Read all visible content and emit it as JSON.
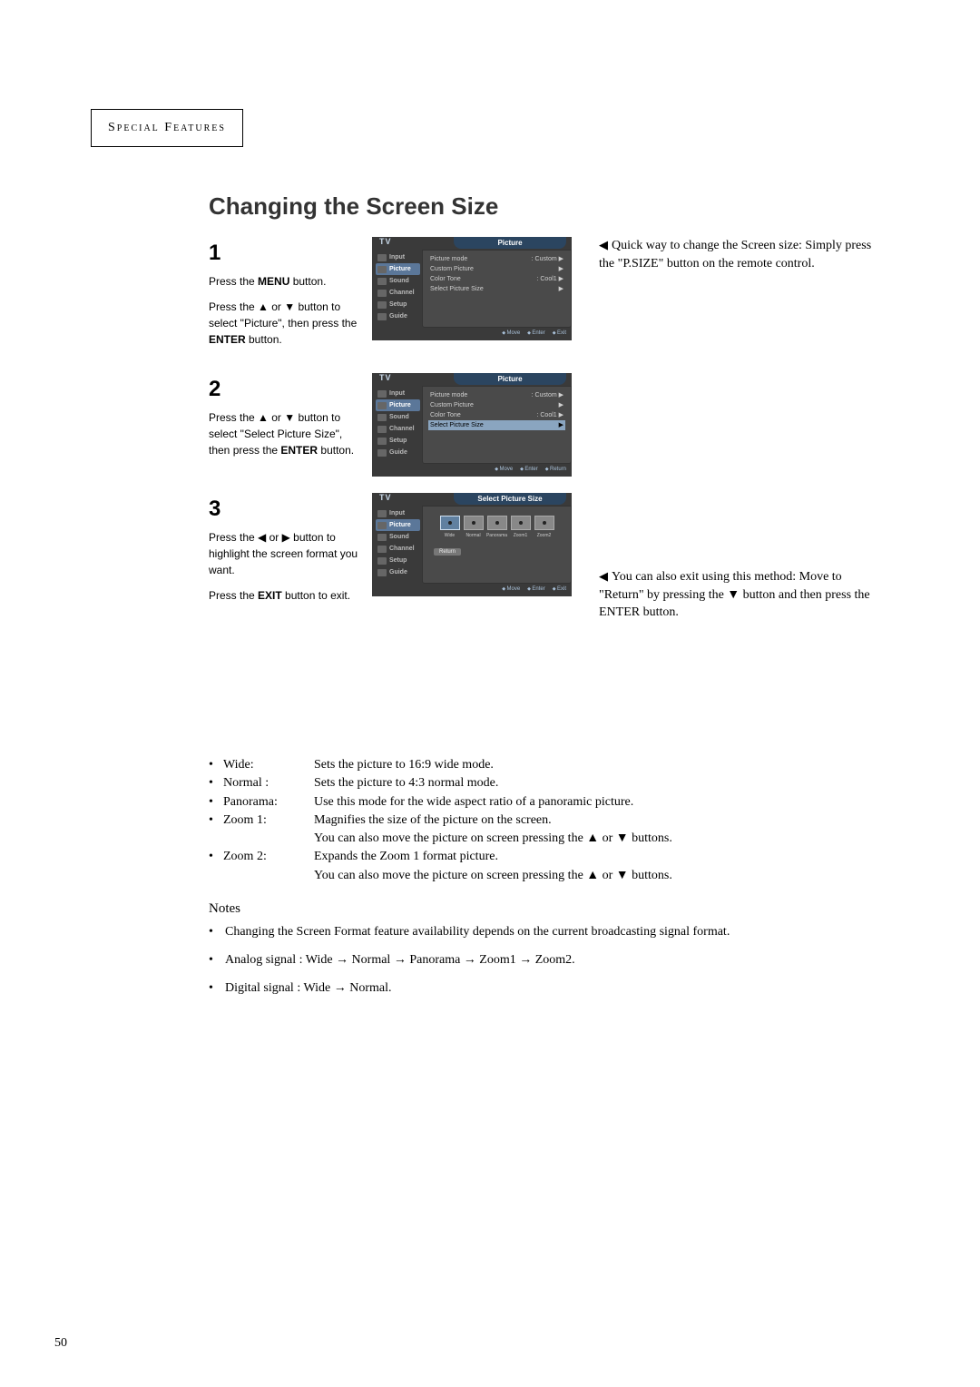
{
  "header": {
    "section": "Special Features"
  },
  "title": "Changing the Screen Size",
  "steps": [
    {
      "num": "1",
      "paras": [
        {
          "pre": "Press the ",
          "bold": "MENU",
          "post": " button."
        },
        {
          "pre": "Press the ▲ or ▼ button to select \"Picture\", then press the ",
          "bold": "ENTER",
          "post": " button."
        }
      ],
      "osd": {
        "tv": "TV",
        "title": "Picture",
        "left": [
          "Input",
          "Picture",
          "Sound",
          "Channel",
          "Setup",
          "Guide"
        ],
        "sel": 1,
        "lines": [
          {
            "l": "Picture mode",
            "r": ": Custom ▶"
          },
          {
            "l": "Custom Picture",
            "r": "▶"
          },
          {
            "l": "Color Tone",
            "r": ": Cool1 ▶"
          },
          {
            "l": "Select Picture Size",
            "r": "▶"
          }
        ],
        "selLine": -1,
        "foot": [
          "Move",
          "Enter",
          "Exit"
        ]
      }
    },
    {
      "num": "2",
      "paras": [
        {
          "pre": "Press the ▲ or ▼ button to select \"Select Picture Size\", then press the ",
          "bold": "ENTER",
          "post": " button."
        }
      ],
      "osd": {
        "tv": "TV",
        "title": "Picture",
        "left": [
          "Input",
          "Picture",
          "Sound",
          "Channel",
          "Setup",
          "Guide"
        ],
        "sel": 1,
        "lines": [
          {
            "l": "Picture mode",
            "r": ": Custom ▶"
          },
          {
            "l": "Custom Picture",
            "r": "▶"
          },
          {
            "l": "Color Tone",
            "r": ": Cool1 ▶"
          },
          {
            "l": "Select Picture Size",
            "r": "▶"
          }
        ],
        "selLine": 3,
        "foot": [
          "Move",
          "Enter",
          "Return"
        ]
      }
    },
    {
      "num": "3",
      "paras": [
        {
          "pre": "Press the ◀ or ▶ button to highlight the screen format you want.",
          "bold": "",
          "post": ""
        },
        {
          "pre": "Press the ",
          "bold": "EXIT",
          "post": " button to exit."
        }
      ],
      "osd3": {
        "tv": "TV",
        "title": "Select Picture Size",
        "left": [
          "Input",
          "Picture",
          "Sound",
          "Channel",
          "Setup",
          "Guide"
        ],
        "sel": 1,
        "sizes": [
          "Wide",
          "Normal",
          "Panorama",
          "Zoom1",
          "Zoom2"
        ],
        "selSize": 0,
        "returnLabel": "Return",
        "foot": [
          "Move",
          "Enter",
          "Exit"
        ]
      }
    }
  ],
  "sidenotes": [
    {
      "text": "Quick way to change the Screen size: Simply press the \"P.SIZE\" button on the remote control."
    },
    {
      "text": "You can also exit using this method: Move to \"Return\" by pressing the ▼ button and then press the ENTER button."
    }
  ],
  "modes": [
    {
      "label": "Wide:",
      "desc": "Sets the picture to 16:9 wide mode."
    },
    {
      "label": "Normal :",
      "desc": "Sets the picture to 4:3 normal mode."
    },
    {
      "label": "Panorama:",
      "desc": "Use this mode for the wide aspect ratio of a panoramic picture."
    },
    {
      "label": "Zoom 1:",
      "desc": "Magnifies the size of the picture on the screen.\nYou can also move the picture on screen pressing the ▲ or ▼ buttons."
    },
    {
      "label": "Zoom 2:",
      "desc": "Expands the Zoom 1 format picture.\nYou can also move the picture on screen pressing the ▲ or ▼ buttons."
    }
  ],
  "notesTitle": "Notes",
  "notes": [
    "Changing the Screen Format feature availability depends on the current broadcasting signal format.",
    "Analog signal : Wide → Normal → Panorama → Zoom1 → Zoom2.",
    "Digital signal : Wide → Normal."
  ],
  "pageNum": "50",
  "colors": {
    "bg": "#ffffff",
    "text": "#000000",
    "title": "#333333",
    "osd_bg": "#3a3a3a",
    "osd_panel": "#4a4a4a",
    "osd_sel": "#5b7799",
    "osd_line_sel": "#8aa5c0",
    "osd_title": "#2b4560"
  }
}
